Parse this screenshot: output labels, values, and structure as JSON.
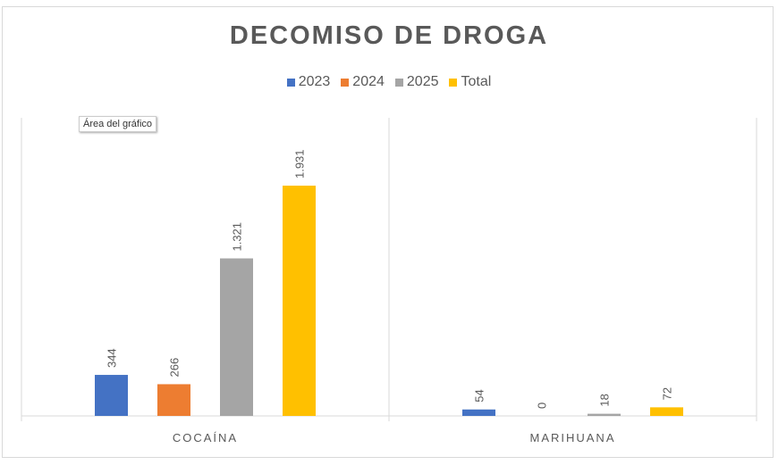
{
  "chart_data": {
    "type": "bar",
    "title": "DECOMISO DE DROGA",
    "categories": [
      "COCAÍNA",
      "MARIHUANA"
    ],
    "series": [
      {
        "name": "2023",
        "color": "#4472c4",
        "values": [
          344,
          54
        ],
        "labels": [
          "344",
          "54"
        ]
      },
      {
        "name": "2024",
        "color": "#ed7d31",
        "values": [
          266,
          0
        ],
        "labels": [
          "266",
          "0"
        ]
      },
      {
        "name": "2025",
        "color": "#a5a5a5",
        "values": [
          1321,
          18
        ],
        "labels": [
          "1.321",
          "18"
        ]
      },
      {
        "name": "Total",
        "color": "#ffc000",
        "values": [
          1931,
          72
        ],
        "labels": [
          "1.931",
          "72"
        ]
      }
    ],
    "ylim": [
      0,
      2500
    ],
    "legend": "top",
    "grid": false
  },
  "tooltip": "Área del gráfico"
}
